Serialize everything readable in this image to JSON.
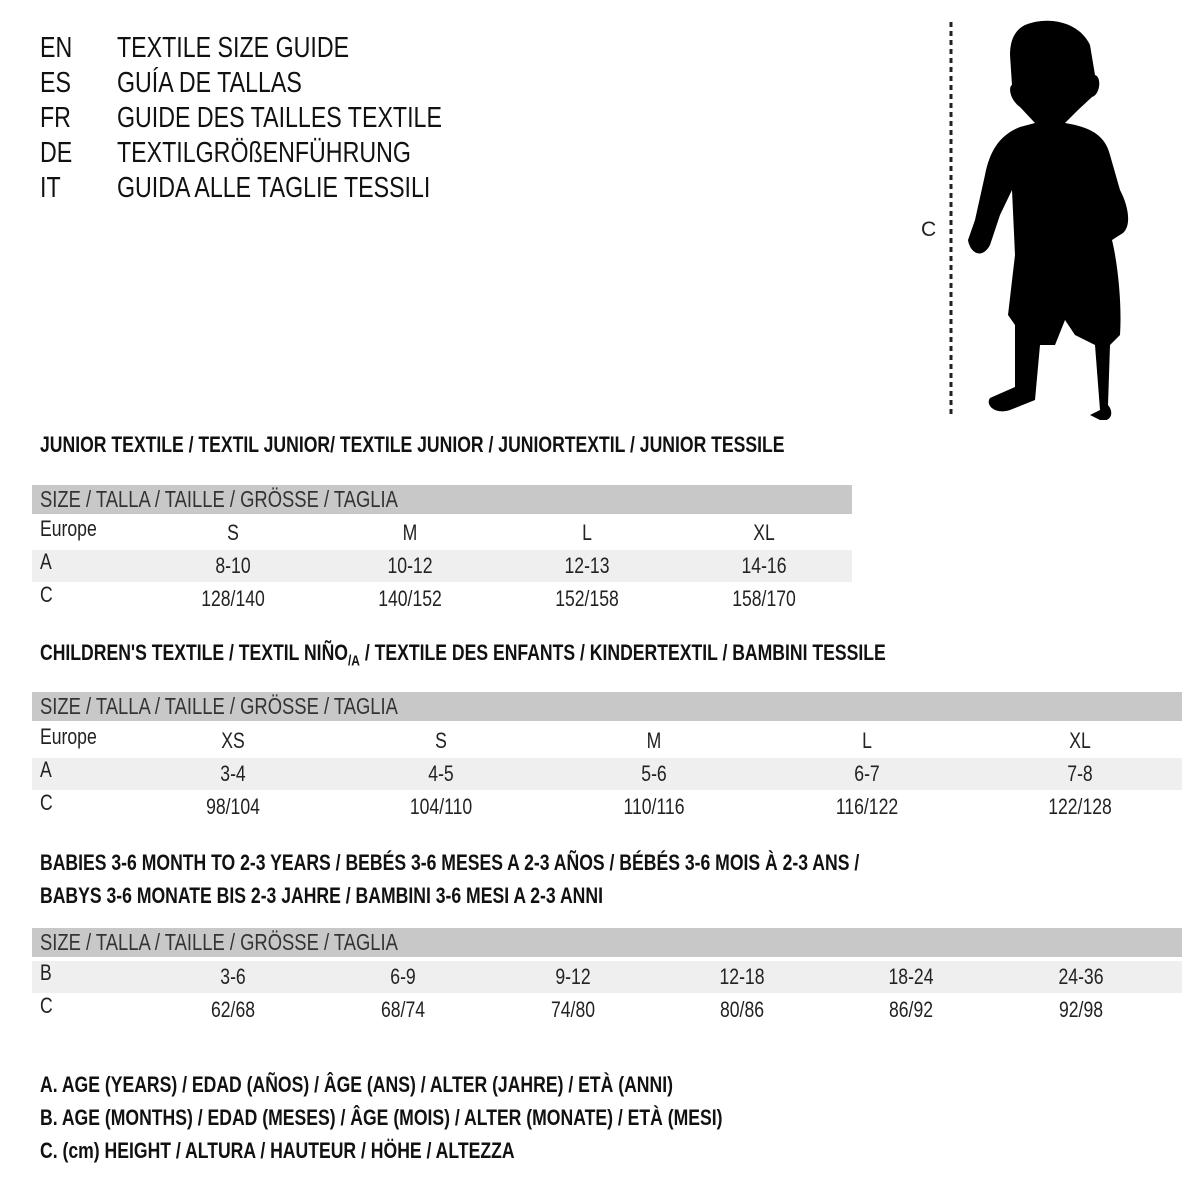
{
  "languages": [
    {
      "code": "EN",
      "title": "TEXTILE SIZE GUIDE"
    },
    {
      "code": "ES",
      "title": "GUÍA DE TALLAS"
    },
    {
      "code": "FR",
      "title": "GUIDE DES TAILLES TEXTILE"
    },
    {
      "code": "DE",
      "title": "TEXTILGRÖßENFÜHRUNG"
    },
    {
      "code": "IT",
      "title": "GUIDA ALLE TAGLIE TESSILI"
    }
  ],
  "figure": {
    "measure_label": "C",
    "icon": "child-silhouette"
  },
  "colors": {
    "header_bar": "#c8c8c8",
    "alt_row": "#efefef"
  },
  "size_bar_label": "SIZE / TALLA / TAILLE / GRÖSSE / TAGLIA",
  "junior": {
    "heading": "JUNIOR TEXTILE / TEXTIL JUNIOR/ TEXTILE JUNIOR / JUNIORTEXTIL / JUNIOR TESSILE",
    "rows": [
      {
        "label": "Europe",
        "values": [
          "S",
          "M",
          "L",
          "XL"
        ]
      },
      {
        "label": "A",
        "values": [
          "8-10",
          "10-12",
          "12-13",
          "14-16"
        ]
      },
      {
        "label": "C",
        "values": [
          "128/140",
          "140/152",
          "152/158",
          "158/170"
        ]
      }
    ]
  },
  "children": {
    "heading_a": "CHILDREN'S TEXTILE / TEXTIL NIÑO",
    "heading_sub": "/A",
    "heading_b": " / TEXTILE DES ENFANTS / KINDERTEXTIL / BAMBINI TESSILE",
    "rows": [
      {
        "label": "Europe",
        "values": [
          "XS",
          "S",
          "M",
          "L",
          "XL"
        ]
      },
      {
        "label": "A",
        "values": [
          "3-4",
          "4-5",
          "5-6",
          "6-7",
          "7-8"
        ]
      },
      {
        "label": "C",
        "values": [
          "98/104",
          "104/110",
          "110/116",
          "116/122",
          "122/128"
        ]
      }
    ]
  },
  "babies": {
    "heading_line1": "BABIES 3-6 MONTH TO 2-3 YEARS / BEBÉS 3-6 MESES A 2-3 AÑOS / BÉBÉS 3-6 MOIS À 2-3 ANS /",
    "heading_line2": "BABYS 3-6 MONATE BIS 2-3 JAHRE / BAMBINI 3-6 MESI A 2-3 ANNI",
    "rows": [
      {
        "label": "B",
        "values": [
          "3-6",
          "6-9",
          "9-12",
          "12-18",
          "18-24",
          "24-36"
        ]
      },
      {
        "label": "C",
        "values": [
          "62/68",
          "68/74",
          "74/80",
          "80/86",
          "86/92",
          "92/98"
        ]
      }
    ]
  },
  "legend": [
    "A. AGE (YEARS) / EDAD (AÑOS) / ÂGE (ANS) / ALTER (JAHRE) / ETÀ (ANNI)",
    "B. AGE (MONTHS) / EDAD (MESES) / ÂGE (MOIS) / ALTER (MONATE) / ETÀ (MESI)",
    "C. (cm) HEIGHT / ALTURA / HAUTEUR / HÖHE / ALTEZZA"
  ]
}
